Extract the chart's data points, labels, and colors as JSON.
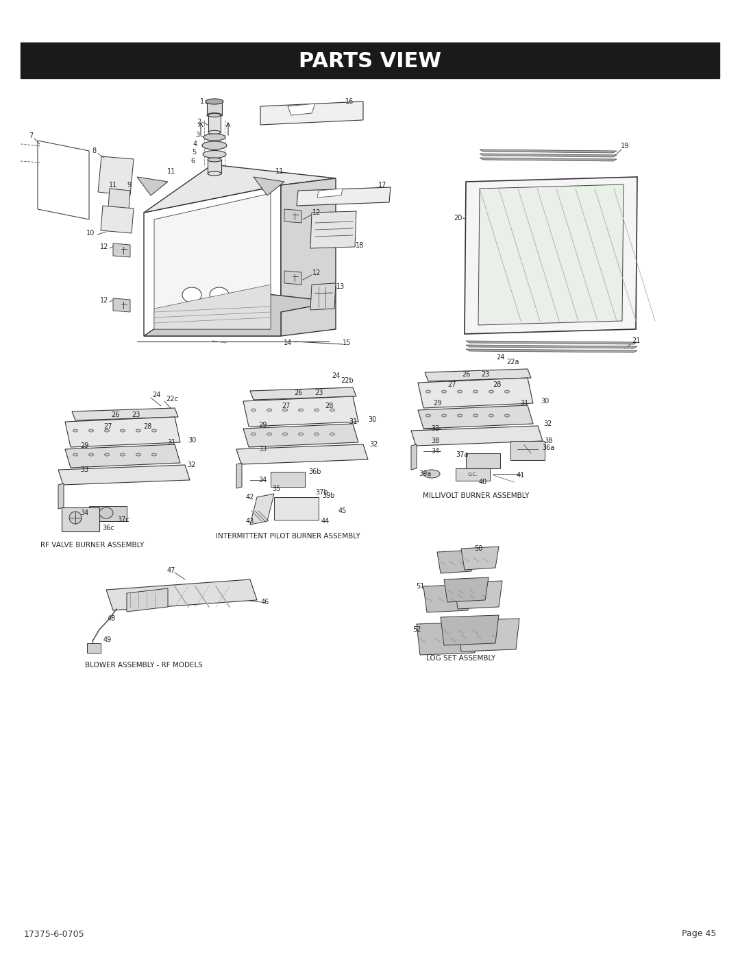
{
  "title": "PARTS VIEW",
  "title_bg": "#1a1a1a",
  "title_color": "#ffffff",
  "title_fontsize": 22,
  "bg_color": "#ffffff",
  "footer_left": "17375-6-0705",
  "footer_right": "Page 45",
  "footer_fontsize": 9,
  "subgroup_labels": {
    "rf_valve": "RF VALVE BURNER ASSEMBLY",
    "intermittent": "INTERMITTENT PILOT BURNER ASSEMBLY",
    "millivolt": "MILLIVOLT BURNER ASSEMBLY",
    "blower": "BLOWER ASSEMBLY - RF MODELS",
    "log_set": "LOG SET ASSEMBLY"
  }
}
